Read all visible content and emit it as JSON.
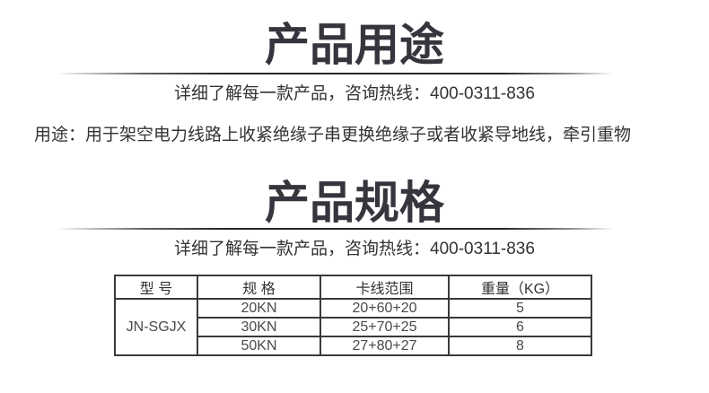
{
  "colors": {
    "heading": "#35353d",
    "divider": "#262626",
    "body_text": "#333333",
    "table_border": "#3a3a3a",
    "table_text": "#4a4a4a"
  },
  "sections": {
    "usage": {
      "title": "产品用途",
      "hotline": "详细了解每一款产品，咨询热线：400-0311-836"
    },
    "spec": {
      "title": "产品规格",
      "hotline": "详细了解每一款产品，咨询热线：400-0311-836"
    }
  },
  "usage_text": "用途：用于架空电力线路上收紧绝缘子串更换绝缘子或者收紧导地线，牵引重物",
  "spec_table": {
    "headers": [
      "型 号",
      "规 格",
      "卡线范围",
      "重量（KG）"
    ],
    "model": "JN-SGJX",
    "rows": [
      {
        "spec": "20KN",
        "range": "20+60+20",
        "weight": "5"
      },
      {
        "spec": "30KN",
        "range": "25+70+25",
        "weight": "6"
      },
      {
        "spec": "50KN",
        "range": "27+80+27",
        "weight": "8"
      }
    ]
  }
}
